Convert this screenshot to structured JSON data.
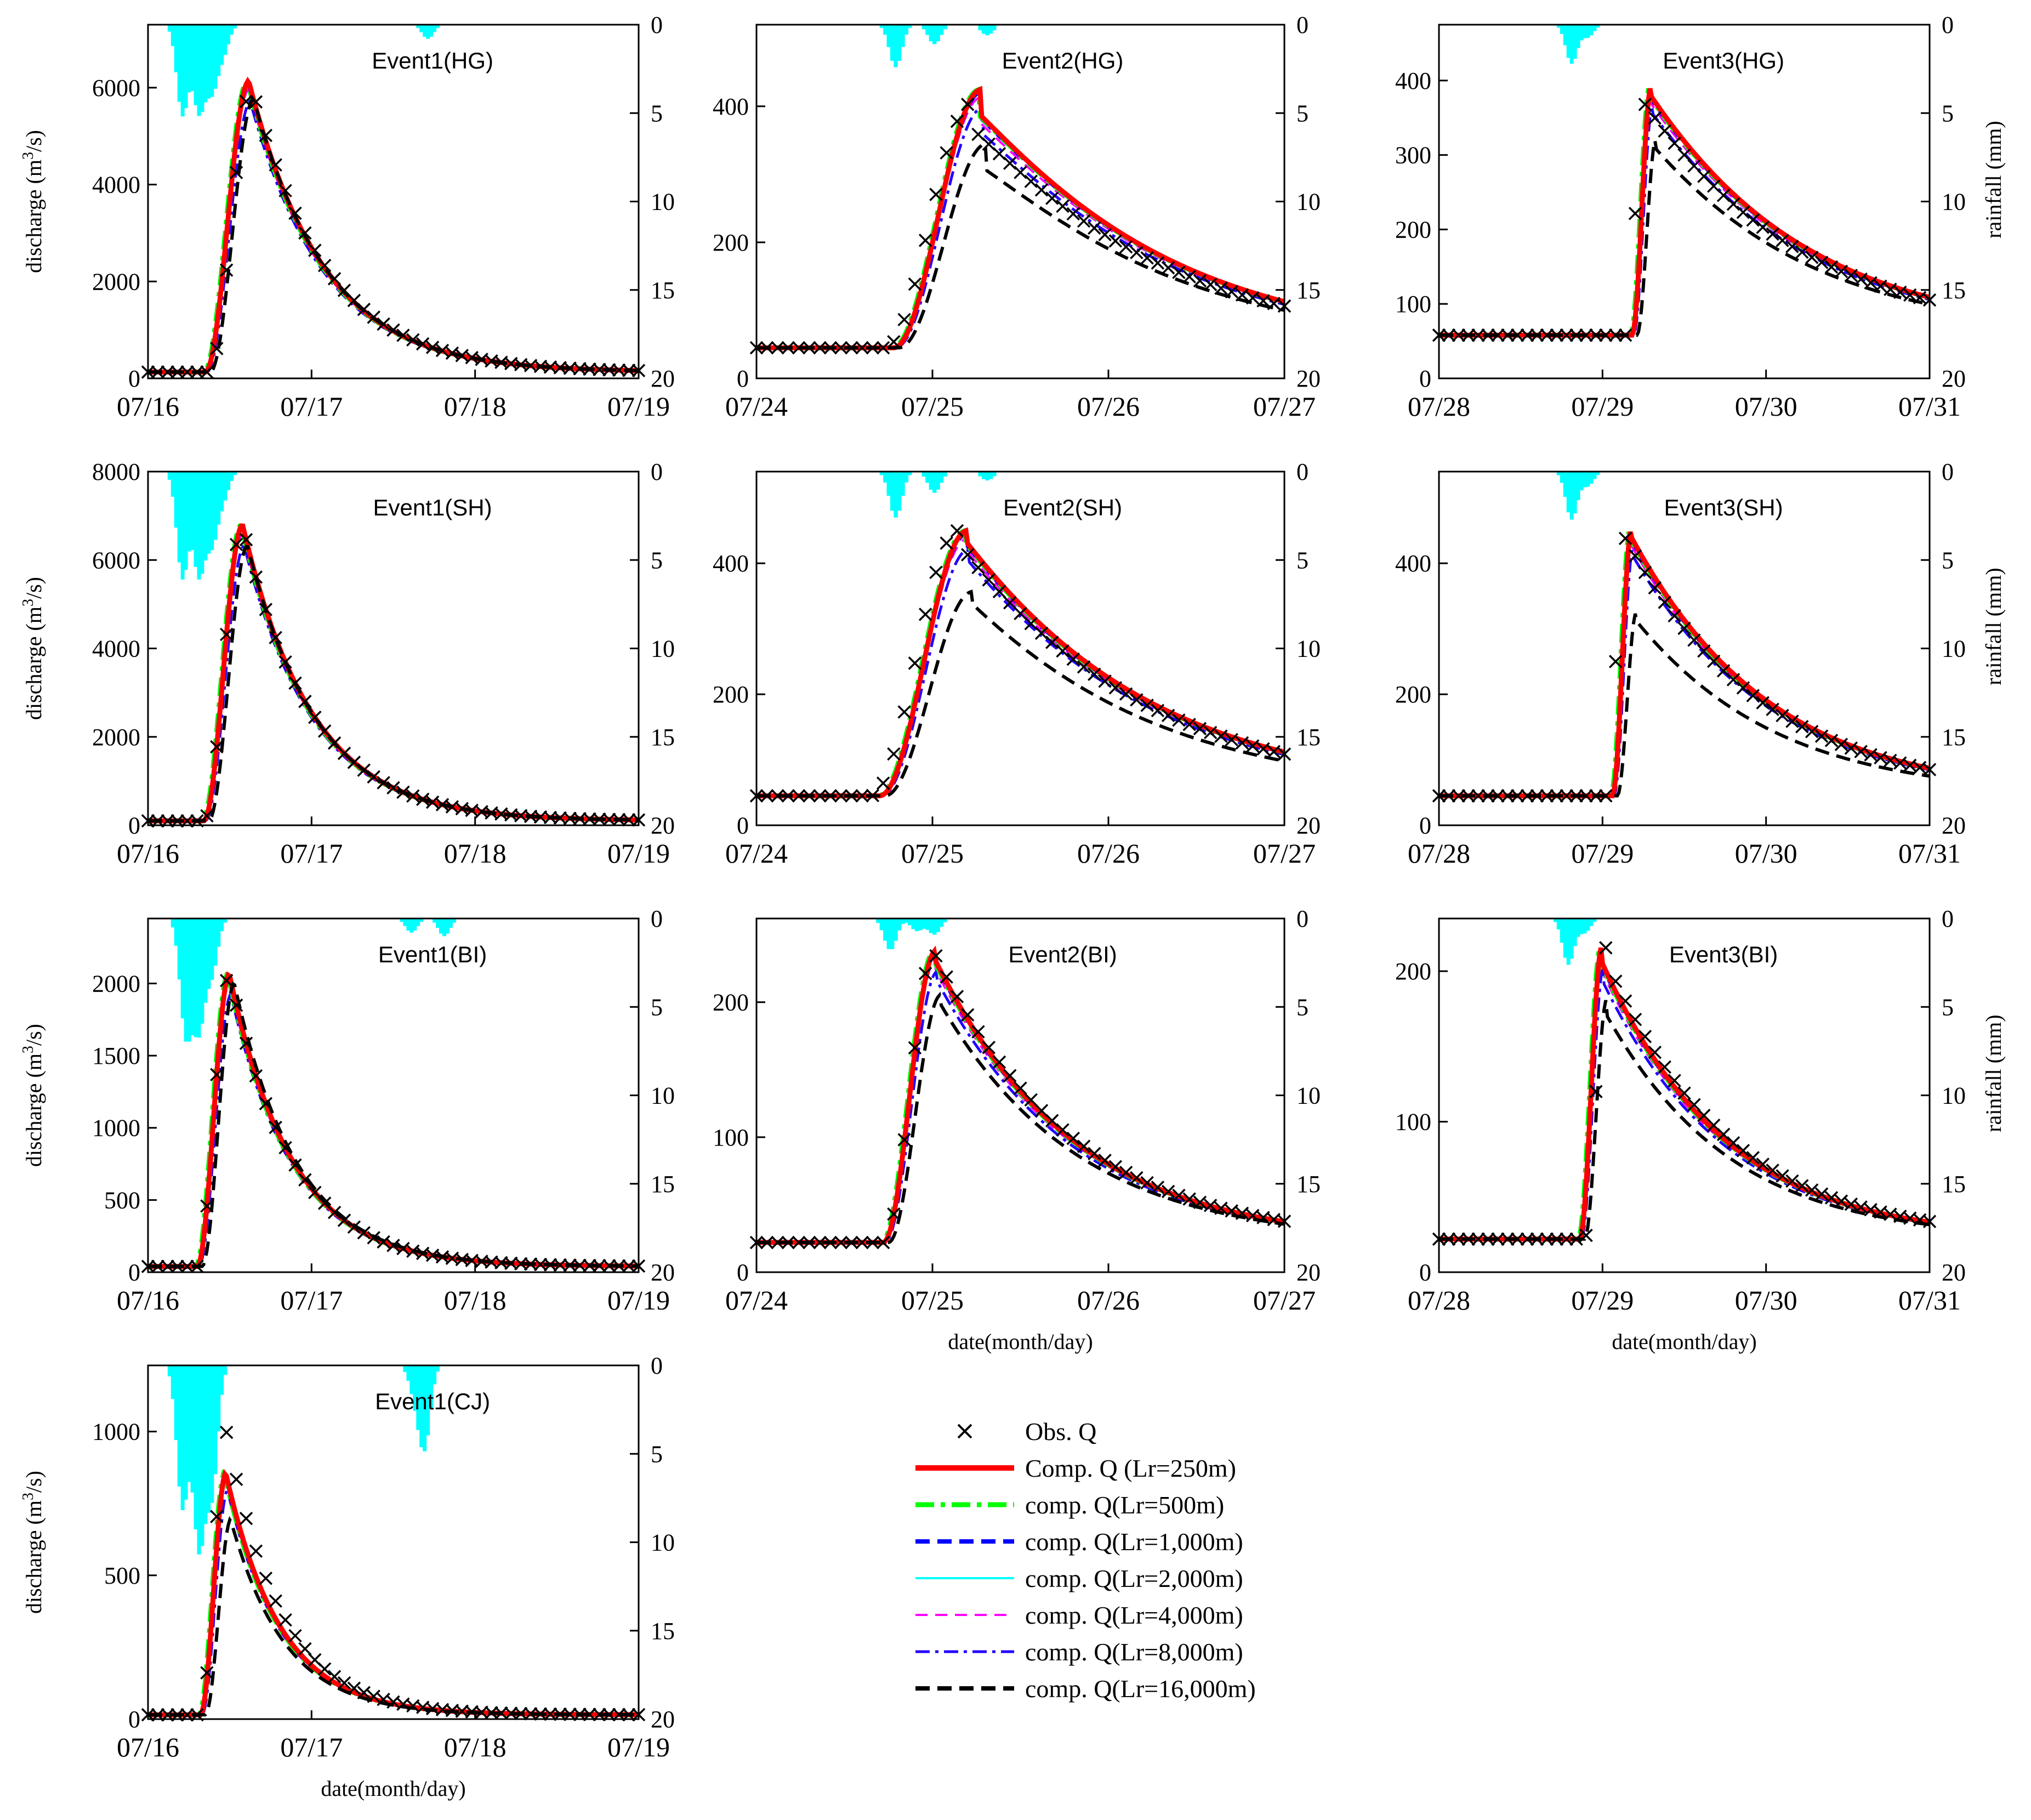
{
  "figure": {
    "legend": {
      "entries": [
        {
          "label": "Obs. Q",
          "style": "marker",
          "color": "#000000"
        },
        {
          "label": "Comp. Q (Lr=250m)",
          "style": "solid-thick",
          "color": "#ff0000"
        },
        {
          "label": "comp. Q(Lr=500m)",
          "style": "dashdot-thick",
          "color": "#00ff00"
        },
        {
          "label": "comp. Q(Lr=1,000m)",
          "style": "dash-thick",
          "color": "#0000ff"
        },
        {
          "label": "comp. Q(Lr=2,000m)",
          "style": "solid",
          "color": "#00ffff"
        },
        {
          "label": "comp. Q(Lr=4,000m)",
          "style": "dash",
          "color": "#ff00ff"
        },
        {
          "label": "comp. Q(Lr=8,000m)",
          "style": "dashdot",
          "color": "#2200ff"
        },
        {
          "label": "comp. Q(Lr=16,000m)",
          "style": "dash-thick",
          "color": "#000000"
        }
      ]
    }
  },
  "chart_data": [
    {
      "type": "line",
      "title": "Event1(HG)",
      "ylabel": "discharge (m3/s)",
      "ylim": [
        0,
        7300
      ],
      "yticks": [
        0,
        2000,
        4000,
        6000
      ],
      "y2label": "",
      "y2lim": [
        20,
        0
      ],
      "y2ticks": [
        0,
        5,
        10,
        15,
        20
      ],
      "xlabel": "",
      "xticks": [
        "07/16",
        "07/17",
        "07/18",
        "07/19"
      ],
      "xlim": [
        0,
        3
      ],
      "params": {
        "base": 130,
        "peak": 6150,
        "tp": 0.62,
        "tr": 0.27,
        "k": 0.45,
        "tail": 200,
        "obsScale": 0.98,
        "obsShift": 0.02,
        "rain": [
          [
            0.2,
            5.1
          ],
          [
            0.3,
            4.8
          ],
          [
            0.38,
            3.5
          ],
          [
            0.45,
            1.5
          ],
          [
            1.7,
            0.8
          ]
        ]
      },
      "series": [
        {
          "name": "Obs. Q",
          "color": "#000000"
        },
        {
          "name": "Comp. Q (Lr=250m)",
          "color": "#ff0000"
        },
        {
          "name": "comp. Q(Lr=16,000m)",
          "color": "#000000",
          "peak_ratio": 0.94
        }
      ]
    },
    {
      "type": "line",
      "title": "Event2(HG)",
      "ylabel": "",
      "ylim": [
        0,
        520
      ],
      "yticks": [
        0,
        200,
        400
      ],
      "y2label": "",
      "y2lim": [
        20,
        0
      ],
      "y2ticks": [
        0,
        5,
        10,
        15,
        20
      ],
      "xlabel": "",
      "xticks": [
        "07/24",
        "07/25",
        "07/26",
        "07/27"
      ],
      "xlim": [
        0,
        3
      ],
      "params": {
        "base": 45,
        "peak": 425,
        "tp": 1.28,
        "tr": 0.5,
        "k": 1.0,
        "tail": 85,
        "obsScale": 0.95,
        "obsShift": -0.05,
        "rain": [
          [
            0.78,
            2.4
          ],
          [
            1.0,
            1.1
          ],
          [
            1.3,
            0.6
          ]
        ]
      },
      "series": [
        {
          "name": "Obs. Q",
          "color": "#000000"
        },
        {
          "name": "Comp. Q (Lr=250m)",
          "color": "#ff0000"
        },
        {
          "name": "comp. Q(Lr=16,000m)",
          "color": "#000000",
          "peak_ratio": 0.79
        }
      ]
    },
    {
      "type": "line",
      "title": "Event3(HG)",
      "ylabel": "",
      "ylim": [
        0,
        475
      ],
      "yticks": [
        0,
        100,
        200,
        300,
        400
      ],
      "y2label": "rainfall (mm)",
      "y2lim": [
        20,
        0
      ],
      "y2ticks": [
        0,
        5,
        10,
        15,
        20
      ],
      "xlabel": "",
      "xticks": [
        "07/28",
        "07/29",
        "07/30",
        "07/31"
      ],
      "xlim": [
        0,
        3
      ],
      "params": {
        "base": 58,
        "peak": 395,
        "tp": 1.3,
        "tr": 0.12,
        "k": 0.9,
        "tail": 75,
        "obsScale": 0.97,
        "obsShift": -0.04,
        "rain": [
          [
            0.8,
            2.2
          ],
          [
            0.9,
            0.7
          ]
        ]
      },
      "series": [
        {
          "name": "Obs. Q",
          "color": "#000000"
        },
        {
          "name": "Comp. Q (Lr=250m)",
          "color": "#ff0000"
        },
        {
          "name": "comp. Q(Lr=16,000m)",
          "color": "#000000",
          "peak_ratio": 0.79
        }
      ]
    },
    {
      "type": "line",
      "title": "Event1(SH)",
      "ylabel": "discharge (m3/s)",
      "ylim": [
        0,
        8000
      ],
      "yticks": [
        0,
        2000,
        4000,
        6000,
        8000
      ],
      "y2label": "",
      "y2lim": [
        20,
        0
      ],
      "y2ticks": [
        0,
        5,
        10,
        15,
        20
      ],
      "xlabel": "",
      "xticks": [
        "07/16",
        "07/17",
        "07/18",
        "07/19"
      ],
      "xlim": [
        0,
        3
      ],
      "params": {
        "base": 100,
        "peak": 6800,
        "tp": 0.58,
        "tr": 0.24,
        "k": 0.42,
        "tail": 130,
        "obsScale": 1.0,
        "obsShift": 0.0,
        "rain": [
          [
            0.2,
            6.0
          ],
          [
            0.3,
            5.7
          ],
          [
            0.38,
            3.8
          ],
          [
            0.45,
            1.4
          ]
        ]
      },
      "series": [
        {
          "name": "Obs. Q",
          "color": "#000000"
        },
        {
          "name": "Comp. Q (Lr=250m)",
          "color": "#ff0000"
        },
        {
          "name": "comp. Q(Lr=16,000m)",
          "color": "#000000",
          "peak_ratio": 0.93
        }
      ]
    },
    {
      "type": "line",
      "title": "Event2(SH)",
      "ylabel": "",
      "ylim": [
        0,
        540
      ],
      "yticks": [
        0,
        200,
        400
      ],
      "y2label": "",
      "y2lim": [
        20,
        0
      ],
      "y2ticks": [
        0,
        5,
        10,
        15,
        20
      ],
      "xlabel": "",
      "xticks": [
        "07/24",
        "07/25",
        "07/26",
        "07/27"
      ],
      "xlim": [
        0,
        3
      ],
      "params": {
        "base": 45,
        "peak": 450,
        "tp": 1.2,
        "tr": 0.5,
        "k": 1.0,
        "tail": 65,
        "obsScale": 1.0,
        "obsShift": -0.05,
        "rain": [
          [
            0.78,
            2.6
          ],
          [
            1.0,
            1.2
          ],
          [
            1.3,
            0.5
          ]
        ]
      },
      "series": [
        {
          "name": "Obs. Q",
          "color": "#000000"
        },
        {
          "name": "Comp. Q (Lr=250m)",
          "color": "#ff0000"
        },
        {
          "name": "comp. Q(Lr=16,000m)",
          "color": "#000000",
          "peak_ratio": 0.77
        }
      ]
    },
    {
      "type": "line",
      "title": "Event3(SH)",
      "ylabel": "",
      "ylim": [
        0,
        540
      ],
      "yticks": [
        0,
        200,
        400
      ],
      "y2label": "rainfall (mm)",
      "y2lim": [
        20,
        0
      ],
      "y2ticks": [
        0,
        5,
        10,
        15,
        20
      ],
      "xlabel": "",
      "xticks": [
        "07/28",
        "07/29",
        "07/30",
        "07/31"
      ],
      "xlim": [
        0,
        3
      ],
      "params": {
        "base": 45,
        "peak": 455,
        "tp": 1.18,
        "tr": 0.12,
        "k": 0.8,
        "tail": 62,
        "obsScale": 1.0,
        "obsShift": -0.04,
        "rain": [
          [
            0.8,
            2.7
          ],
          [
            0.9,
            0.8
          ]
        ]
      },
      "series": [
        {
          "name": "Obs. Q",
          "color": "#000000"
        },
        {
          "name": "Comp. Q (Lr=250m)",
          "color": "#ff0000"
        },
        {
          "name": "comp. Q(Lr=16,000m)",
          "color": "#000000",
          "peak_ratio": 0.69
        }
      ]
    },
    {
      "type": "line",
      "title": "Event1(BI)",
      "ylabel": "discharge (m3/s)",
      "ylim": [
        0,
        2450
      ],
      "yticks": [
        0,
        500,
        1000,
        1500,
        2000
      ],
      "y2label": "",
      "y2lim": [
        20,
        0
      ],
      "y2ticks": [
        0,
        5,
        10,
        15,
        20
      ],
      "xlabel": "",
      "xticks": [
        "07/16",
        "07/17",
        "07/18",
        "07/19"
      ],
      "xlim": [
        0,
        3
      ],
      "params": {
        "base": 40,
        "peak": 2070,
        "tp": 0.5,
        "tr": 0.2,
        "k": 0.38,
        "tail": 60,
        "obsScale": 1.0,
        "obsShift": 0.0,
        "rain": [
          [
            0.22,
            6.5
          ],
          [
            0.3,
            6.0
          ],
          [
            0.38,
            3.0
          ],
          [
            1.6,
            0.8
          ],
          [
            1.8,
            1.0
          ]
        ]
      },
      "series": [
        {
          "name": "Obs. Q",
          "color": "#000000"
        },
        {
          "name": "Comp. Q (Lr=250m)",
          "color": "#ff0000"
        },
        {
          "name": "comp. Q(Lr=16,000m)",
          "color": "#000000",
          "peak_ratio": 0.97
        }
      ]
    },
    {
      "type": "line",
      "title": "Event2(BI)",
      "ylabel": "",
      "ylim": [
        0,
        262
      ],
      "yticks": [
        0,
        100,
        200
      ],
      "y2label": "",
      "y2lim": [
        20,
        0
      ],
      "y2ticks": [
        0,
        5,
        10,
        15,
        20
      ],
      "xlabel": "date(month/day)",
      "xticks": [
        "07/24",
        "07/25",
        "07/26",
        "07/27"
      ],
      "xlim": [
        0,
        3
      ],
      "params": {
        "base": 22,
        "peak": 238,
        "tp": 1.02,
        "tr": 0.3,
        "k": 0.75,
        "tail": 30,
        "obsScale": 1.02,
        "obsShift": 0.0,
        "rain": [
          [
            0.75,
            1.8
          ],
          [
            1.0,
            0.9
          ],
          [
            0.9,
            0.7
          ]
        ]
      },
      "series": [
        {
          "name": "Obs. Q",
          "color": "#000000"
        },
        {
          "name": "Comp. Q (Lr=250m)",
          "color": "#ff0000"
        },
        {
          "name": "comp. Q(Lr=16,000m)",
          "color": "#000000",
          "peak_ratio": 0.85
        }
      ]
    },
    {
      "type": "line",
      "title": "Event3(BI)",
      "ylabel": "",
      "ylim": [
        0,
        235
      ],
      "yticks": [
        0,
        100,
        200
      ],
      "y2label": "rainfall (mm)",
      "y2lim": [
        20,
        0
      ],
      "y2ticks": [
        0,
        5,
        10,
        15,
        20
      ],
      "xlabel": "date(month/day)",
      "xticks": [
        "07/28",
        "07/29",
        "07/30",
        "07/31"
      ],
      "xlim": [
        0,
        3
      ],
      "params": {
        "base": 22,
        "peak": 218,
        "tp": 1.0,
        "tr": 0.14,
        "k": 0.7,
        "tail": 35,
        "obsScale": 1.0,
        "obsShift": 0.03,
        "rain": [
          [
            0.78,
            2.6
          ],
          [
            0.88,
            0.8
          ]
        ]
      },
      "series": [
        {
          "name": "Obs. Q",
          "color": "#000000"
        },
        {
          "name": "Comp. Q (Lr=250m)",
          "color": "#ff0000"
        },
        {
          "name": "comp. Q(Lr=16,000m)",
          "color": "#000000",
          "peak_ratio": 0.82
        }
      ]
    },
    {
      "type": "line",
      "title": "Event1(CJ)",
      "ylabel": "discharge (m3/s)",
      "ylim": [
        0,
        1230
      ],
      "yticks": [
        0,
        500,
        1000
      ],
      "y2label": "",
      "y2lim": [
        20,
        0
      ],
      "y2ticks": [
        0,
        5,
        10,
        15,
        20
      ],
      "xlabel": "date(month/day)",
      "xticks": [
        "07/16",
        "07/17",
        "07/18",
        "07/19"
      ],
      "xlim": [
        0,
        3
      ],
      "params": {
        "base": 15,
        "peak": 860,
        "tp": 0.48,
        "tr": 0.16,
        "k": 0.33,
        "tail": 30,
        "obsScale": 1.18,
        "obsShift": 0.0,
        "rain": [
          [
            0.2,
            8.0
          ],
          [
            0.3,
            10.0
          ],
          [
            0.38,
            7.0
          ],
          [
            1.62,
            1.5
          ],
          [
            1.68,
            4.5
          ]
        ]
      },
      "series": [
        {
          "name": "Obs. Q",
          "color": "#000000"
        },
        {
          "name": "Comp. Q (Lr=250m)",
          "color": "#ff0000"
        },
        {
          "name": "comp. Q(Lr=16,000m)",
          "color": "#000000",
          "peak_ratio": 0.81
        }
      ]
    }
  ]
}
